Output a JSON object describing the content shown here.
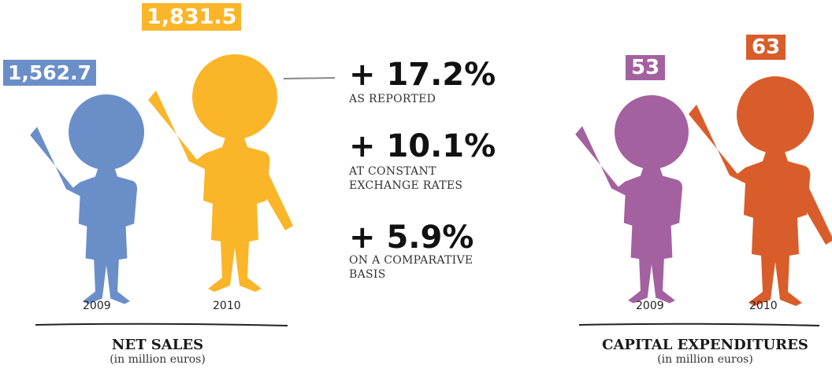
{
  "chart_data": [
    {
      "type": "bar",
      "title": "NET SALES",
      "subtitle": "(in million euros)",
      "categories": [
        "2009",
        "2010"
      ],
      "values": [
        1562.7,
        1831.5
      ],
      "value_labels": [
        "1,562.7",
        "1,831.5"
      ],
      "colors": [
        "#6a8fc8",
        "#fbb528"
      ]
    },
    {
      "type": "bar",
      "title": "CAPITAL EXPENDITURES",
      "subtitle": "(in million euros)",
      "categories": [
        "2009",
        "2010"
      ],
      "values": [
        53,
        63
      ],
      "value_labels": [
        "53",
        "63"
      ],
      "colors": [
        "#a4619f",
        "#d95d2a"
      ]
    }
  ],
  "growth": [
    {
      "value": "+ 17.2%",
      "label_lines": [
        "AS REPORTED"
      ]
    },
    {
      "value": "+ 10.1%",
      "label_lines": [
        "AT CONSTANT",
        "EXCHANGE RATES"
      ]
    },
    {
      "value": "+ 5.9%",
      "label_lines": [
        "ON A COMPARATIVE",
        "BASIS"
      ]
    }
  ]
}
